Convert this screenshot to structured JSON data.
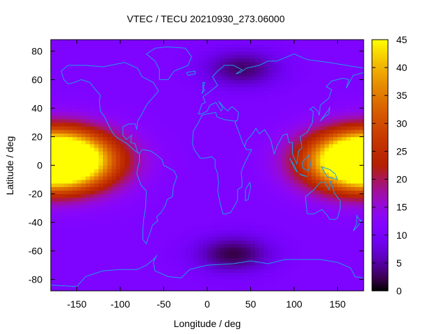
{
  "chart_data": {
    "type": "heatmap",
    "title": "VTEC / TECU 20210930_273.06000",
    "xlabel": "Longitude / deg",
    "ylabel": "Latitude / deg",
    "xlim": [
      -180,
      180
    ],
    "ylim": [
      -88,
      88
    ],
    "x_ticks": [
      -150,
      -100,
      -50,
      0,
      50,
      100,
      150
    ],
    "y_ticks": [
      -80,
      -60,
      -40,
      -20,
      0,
      20,
      40,
      60,
      80
    ],
    "colorbar": {
      "range": [
        0,
        45
      ],
      "ticks": [
        0,
        5,
        10,
        15,
        20,
        25,
        30,
        35,
        40,
        45
      ],
      "palette": "gnuplot-pm3d (black-purple-red-orange-yellow)"
    },
    "features": {
      "background_tec": 11,
      "equatorial_anomaly_peaks": [
        {
          "lon": -172,
          "lat": 5,
          "tec": 45
        },
        {
          "lon": 180,
          "lat": 2,
          "tec": 42
        }
      ],
      "polar_minima": [
        {
          "lon": 30,
          "lat": -62,
          "tec": 2
        },
        {
          "lon": 40,
          "lat": 68,
          "tec": 3
        }
      ]
    },
    "overlay": "coastlines"
  }
}
